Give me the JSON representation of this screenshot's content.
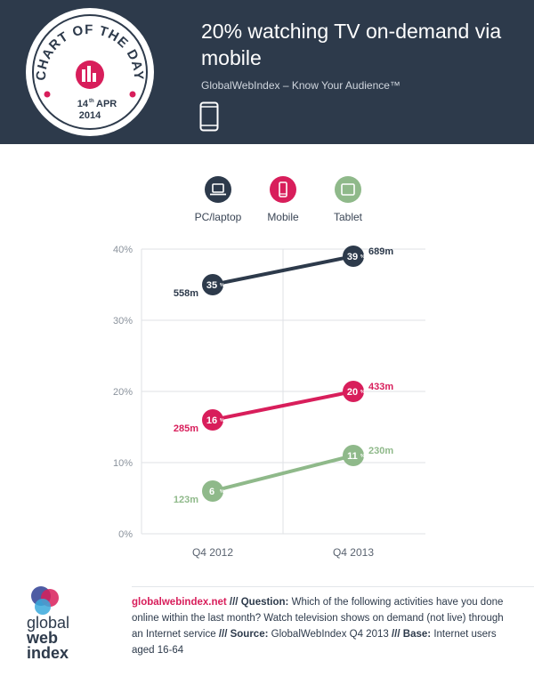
{
  "header": {
    "title": "20% watching TV on-demand via mobile",
    "subtitle": "GlobalWebIndex – Know Your Audience™",
    "badge": {
      "arc_text": "CHART OF THE DAY",
      "day": "14",
      "day_suffix": "th",
      "month": "APR",
      "year": "2014"
    },
    "icon": "mobile-phone-icon"
  },
  "legend": [
    {
      "label": "PC/laptop",
      "icon": "laptop-icon",
      "color": "#2d3a4b"
    },
    {
      "label": "Mobile",
      "icon": "mobile-icon",
      "color": "#d81e5b"
    },
    {
      "label": "Tablet",
      "icon": "tablet-icon",
      "color": "#8fb98a"
    }
  ],
  "chart_data": {
    "type": "line",
    "categories": [
      "Q4 2012",
      "Q4 2013"
    ],
    "yticks": [
      "0%",
      "10%",
      "20%",
      "30%",
      "40%"
    ],
    "ylim": [
      0,
      40
    ],
    "grid": true,
    "series": [
      {
        "name": "PC/laptop",
        "color": "#2d3a4b",
        "values": [
          35,
          39
        ],
        "point_labels": [
          "35",
          "39"
        ],
        "unit_labels": [
          "558m",
          "689m"
        ]
      },
      {
        "name": "Mobile",
        "color": "#d81e5b",
        "values": [
          16,
          20
        ],
        "point_labels": [
          "16",
          "20"
        ],
        "unit_labels": [
          "285m",
          "433m"
        ]
      },
      {
        "name": "Tablet",
        "color": "#8fb98a",
        "values": [
          6,
          11
        ],
        "point_labels": [
          "6",
          "11"
        ],
        "unit_labels": [
          "123m",
          "230m"
        ]
      }
    ]
  },
  "footer": {
    "logo_text": [
      "global",
      "web",
      "index"
    ],
    "url": "globalwebindex.net",
    "sep": "///",
    "question_label": "Question:",
    "question": "Which of the following activities have you done online within the last month? Watch television shows on demand (not live) through an Internet service",
    "source_label": "Source:",
    "source": "GlobalWebIndex Q4 2013",
    "base_label": "Base:",
    "base": "Internet users aged 16-64"
  }
}
